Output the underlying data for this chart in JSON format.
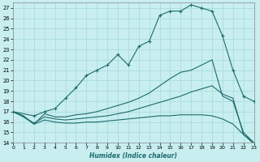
{
  "xlabel": "Humidex (Indice chaleur)",
  "bg_color": "#c8eef0",
  "grid_color": "#aadddd",
  "line_color": "#1e6b6b",
  "xlim": [
    0,
    23
  ],
  "ylim": [
    14,
    27.5
  ],
  "yticks": [
    14,
    15,
    16,
    17,
    18,
    19,
    20,
    21,
    22,
    23,
    24,
    25,
    26,
    27
  ],
  "xticks": [
    0,
    1,
    2,
    3,
    4,
    5,
    6,
    7,
    8,
    9,
    10,
    11,
    12,
    13,
    14,
    15,
    16,
    17,
    18,
    19,
    20,
    21,
    22,
    23
  ],
  "series_main": {
    "x": [
      0,
      2,
      3,
      4,
      5,
      6,
      7,
      8,
      9,
      10,
      11,
      12,
      13,
      14,
      15,
      16,
      17,
      18,
      19,
      20,
      21,
      22,
      23
    ],
    "y": [
      17.0,
      16.6,
      17.0,
      17.3,
      18.3,
      19.3,
      20.5,
      21.0,
      21.5,
      22.5,
      21.5,
      23.3,
      23.8,
      26.3,
      26.7,
      26.7,
      27.3,
      27.0,
      26.7,
      24.3,
      21.0,
      18.5,
      18.0
    ]
  },
  "series_upper": {
    "x": [
      0,
      1,
      2,
      3,
      4,
      5,
      6,
      7,
      8,
      9,
      10,
      11,
      12,
      13,
      14,
      15,
      16,
      17,
      18,
      19,
      20,
      21,
      22,
      23
    ],
    "y": [
      17.0,
      16.6,
      15.8,
      16.8,
      16.5,
      16.5,
      16.7,
      16.8,
      17.0,
      17.3,
      17.6,
      17.9,
      18.3,
      18.8,
      19.5,
      20.2,
      20.8,
      21.0,
      21.5,
      22.0,
      18.5,
      18.0,
      15.0,
      14.0
    ]
  },
  "series_lower1": {
    "x": [
      0,
      1,
      2,
      3,
      4,
      5,
      6,
      7,
      8,
      9,
      10,
      11,
      12,
      13,
      14,
      15,
      16,
      17,
      18,
      19,
      20,
      21,
      22,
      23
    ],
    "y": [
      17.0,
      16.5,
      15.9,
      16.5,
      16.3,
      16.2,
      16.3,
      16.4,
      16.5,
      16.6,
      16.8,
      17.0,
      17.3,
      17.6,
      17.9,
      18.2,
      18.5,
      18.9,
      19.2,
      19.5,
      18.7,
      18.3,
      14.8,
      14.0
    ]
  },
  "series_lower2": {
    "x": [
      0,
      1,
      2,
      3,
      4,
      5,
      6,
      7,
      8,
      9,
      10,
      11,
      12,
      13,
      14,
      15,
      16,
      17,
      18,
      19,
      20,
      21,
      22,
      23
    ],
    "y": [
      17.0,
      16.5,
      15.8,
      16.2,
      16.0,
      15.9,
      15.9,
      16.0,
      16.0,
      16.1,
      16.2,
      16.3,
      16.4,
      16.5,
      16.6,
      16.6,
      16.7,
      16.7,
      16.7,
      16.6,
      16.3,
      15.8,
      14.8,
      13.9
    ]
  }
}
